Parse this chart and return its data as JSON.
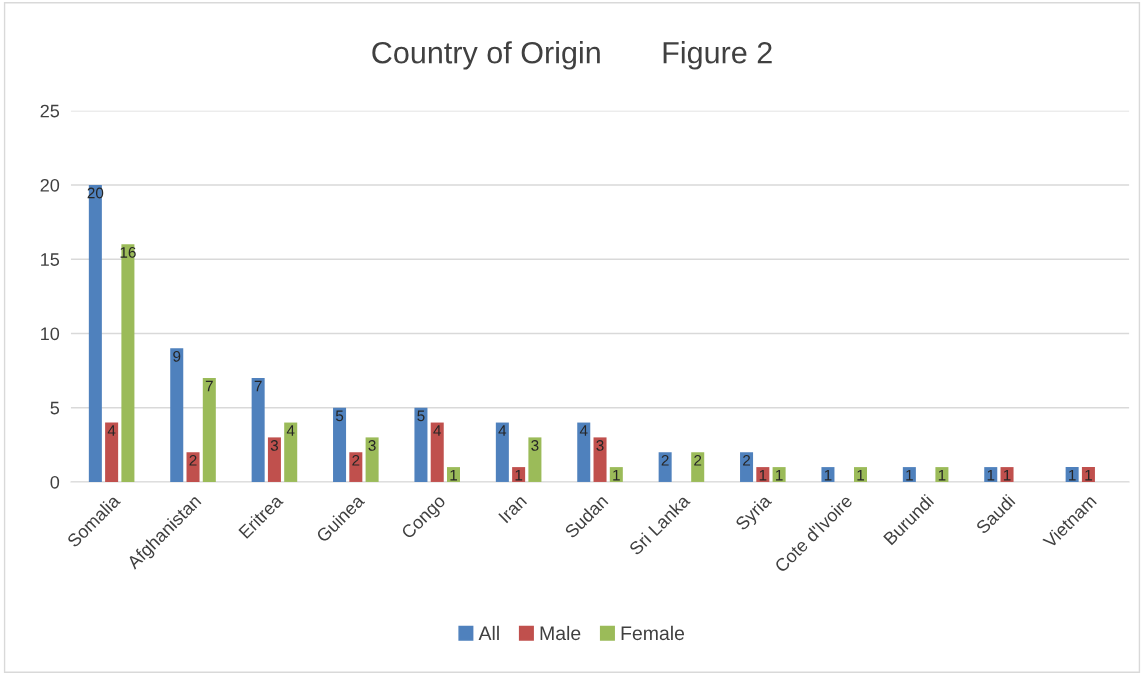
{
  "chart_data": {
    "type": "bar",
    "title": "Country of Origin       Figure 2",
    "categories": [
      "Somalia",
      "Afghanistan",
      "Eritrea",
      "Guinea",
      "Congo",
      "Iran",
      "Sudan",
      "Sri Lanka",
      "Syria",
      "Cote d'Ivoire",
      "Burundi",
      "Saudi",
      "Vietnam"
    ],
    "series": [
      {
        "name": "All",
        "color": "#4f81bd",
        "values": [
          20,
          9,
          7,
          5,
          5,
          4,
          4,
          2,
          2,
          1,
          1,
          1,
          1
        ]
      },
      {
        "name": "Male",
        "color": "#c0504d",
        "values": [
          4,
          2,
          3,
          2,
          4,
          1,
          3,
          null,
          1,
          null,
          null,
          1,
          1
        ]
      },
      {
        "name": "Female",
        "color": "#9bbb59",
        "values": [
          16,
          7,
          4,
          3,
          1,
          3,
          1,
          2,
          1,
          1,
          1,
          null,
          null
        ]
      }
    ],
    "ylim": [
      0,
      25
    ],
    "yticks": [
      0,
      5,
      10,
      15,
      20,
      25
    ],
    "grid": "y",
    "legend": "bottom",
    "data_labels": true
  }
}
